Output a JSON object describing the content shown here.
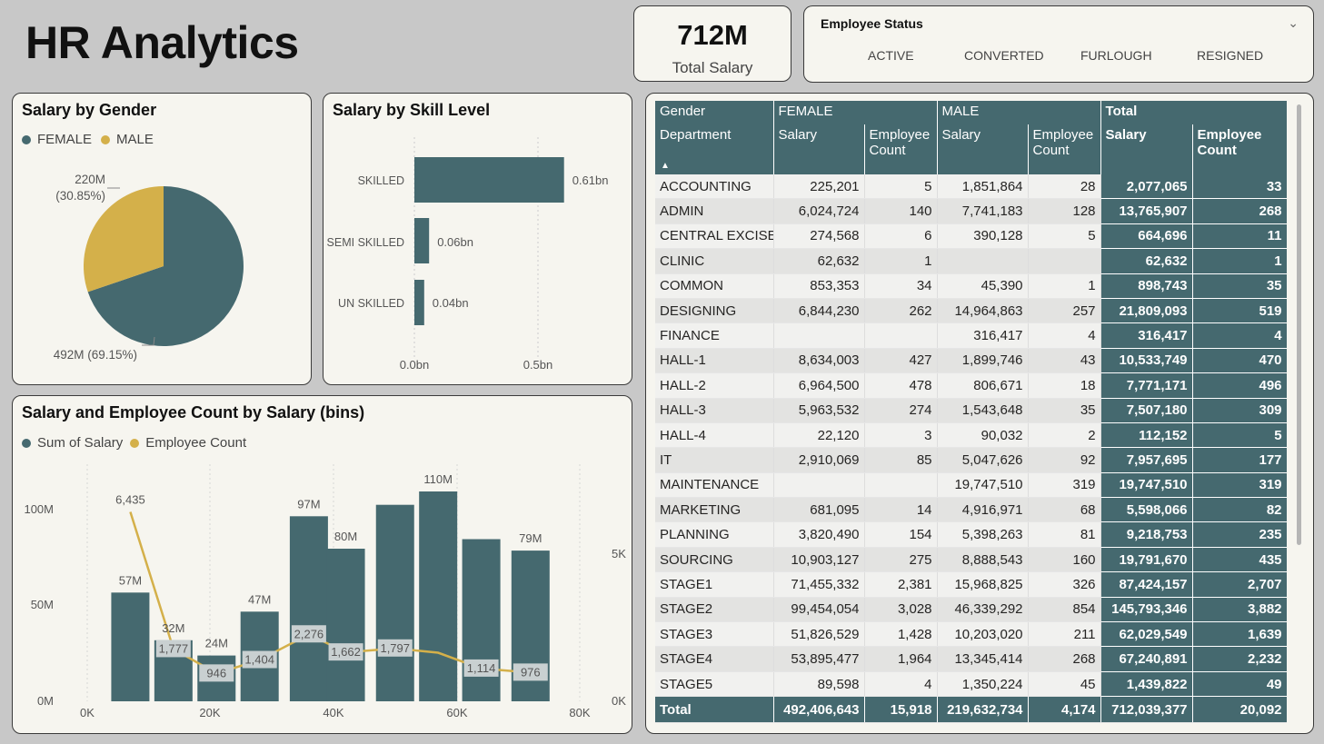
{
  "page_title": "HR Analytics",
  "kpi": {
    "value": "712M",
    "label": "Total Salary"
  },
  "slicer": {
    "title": "Employee Status",
    "options": [
      "ACTIVE",
      "CONVERTED",
      "FURLOUGH",
      "RESIGNED"
    ]
  },
  "colors": {
    "teal": "#45696f",
    "gold": "#d4b04a",
    "panel": "#f6f5ef",
    "background": "#c8c8c8"
  },
  "salary_by_gender": {
    "title": "Salary by Gender",
    "legend": [
      "FEMALE",
      "MALE"
    ],
    "female_label": "492M (69.15%)",
    "male_label_value": "220M",
    "male_label_pct": "(30.85%)"
  },
  "salary_by_skill": {
    "title": "Salary by Skill Level",
    "labels": {
      "skilled": "SKILLED",
      "semi": "SEMI SKILLED",
      "un": "UN SKILLED"
    },
    "values": {
      "skilled": "0.61bn",
      "semi": "0.06bn",
      "un": "0.04bn"
    },
    "ticks": [
      "0.0bn",
      "0.5bn"
    ]
  },
  "bins_chart": {
    "title": "Salary and Employee Count by Salary (bins)",
    "legend": [
      "Sum of Salary",
      "Employee Count"
    ],
    "y_left_ticks": [
      "100M",
      "50M",
      "0M"
    ],
    "y_right_ticks": [
      "5K",
      "0K"
    ],
    "x_ticks": [
      "0K",
      "20K",
      "40K",
      "60K",
      "80K"
    ]
  },
  "chart_data": [
    {
      "type": "pie",
      "title": "Salary by Gender",
      "categories": [
        "FEMALE",
        "MALE"
      ],
      "values": [
        492,
        220
      ],
      "percent": [
        69.15,
        30.85
      ],
      "unit": "M"
    },
    {
      "type": "bar",
      "title": "Salary by Skill Level",
      "orientation": "horizontal",
      "categories": [
        "SKILLED",
        "SEMI SKILLED",
        "UN SKILLED"
      ],
      "values": [
        0.61,
        0.06,
        0.04
      ],
      "unit": "bn",
      "xlim": [
        0,
        0.61
      ]
    },
    {
      "type": "bar",
      "title": "Salary and Employee Count by Salary (bins)",
      "x": [
        7000,
        14000,
        21000,
        28000,
        36000,
        42000,
        50000,
        57000,
        64000,
        72000
      ],
      "series": [
        {
          "name": "Sum of Salary",
          "type": "bar",
          "values": [
            57,
            32,
            24,
            47,
            97,
            80,
            103,
            110,
            85,
            79
          ],
          "labels": [
            "57M",
            "32M",
            "24M",
            "47M",
            "97M",
            "80M",
            "",
            "110M",
            "",
            "79M"
          ]
        },
        {
          "name": "Employee Count",
          "type": "line",
          "values": [
            6435,
            1777,
            946,
            1404,
            2276,
            1662,
            1797,
            1650,
            1114,
            976
          ],
          "labels": [
            "6,435",
            "1,777",
            "946",
            "1,404",
            "2,276",
            "1,662",
            "1,797",
            "",
            "1,114",
            "976"
          ]
        }
      ],
      "xlim": [
        0,
        80000
      ],
      "ylim_left": [
        0,
        100
      ],
      "ylim_right": [
        0,
        5000
      ]
    }
  ],
  "table": {
    "header_row1": [
      "Gender",
      "FEMALE",
      "MALE",
      "Total"
    ],
    "header_row2": [
      "Department",
      "Salary",
      "Employee Count",
      "Salary",
      "Employee Count",
      "Salary",
      "Employee Count"
    ],
    "rows": [
      [
        "ACCOUNTING",
        "225,201",
        "5",
        "1,851,864",
        "28",
        "2,077,065",
        "33"
      ],
      [
        "ADMIN",
        "6,024,724",
        "140",
        "7,741,183",
        "128",
        "13,765,907",
        "268"
      ],
      [
        "CENTRAL EXCISE",
        "274,568",
        "6",
        "390,128",
        "5",
        "664,696",
        "11"
      ],
      [
        "CLINIC",
        "62,632",
        "1",
        "",
        "",
        "62,632",
        "1"
      ],
      [
        "COMMON",
        "853,353",
        "34",
        "45,390",
        "1",
        "898,743",
        "35"
      ],
      [
        "DESIGNING",
        "6,844,230",
        "262",
        "14,964,863",
        "257",
        "21,809,093",
        "519"
      ],
      [
        "FINANCE",
        "",
        "",
        "316,417",
        "4",
        "316,417",
        "4"
      ],
      [
        "HALL-1",
        "8,634,003",
        "427",
        "1,899,746",
        "43",
        "10,533,749",
        "470"
      ],
      [
        "HALL-2",
        "6,964,500",
        "478",
        "806,671",
        "18",
        "7,771,171",
        "496"
      ],
      [
        "HALL-3",
        "5,963,532",
        "274",
        "1,543,648",
        "35",
        "7,507,180",
        "309"
      ],
      [
        "HALL-4",
        "22,120",
        "3",
        "90,032",
        "2",
        "112,152",
        "5"
      ],
      [
        "IT",
        "2,910,069",
        "85",
        "5,047,626",
        "92",
        "7,957,695",
        "177"
      ],
      [
        "MAINTENANCE",
        "",
        "",
        "19,747,510",
        "319",
        "19,747,510",
        "319"
      ],
      [
        "MARKETING",
        "681,095",
        "14",
        "4,916,971",
        "68",
        "5,598,066",
        "82"
      ],
      [
        "PLANNING",
        "3,820,490",
        "154",
        "5,398,263",
        "81",
        "9,218,753",
        "235"
      ],
      [
        "SOURCING",
        "10,903,127",
        "275",
        "8,888,543",
        "160",
        "19,791,670",
        "435"
      ],
      [
        "STAGE1",
        "71,455,332",
        "2,381",
        "15,968,825",
        "326",
        "87,424,157",
        "2,707"
      ],
      [
        "STAGE2",
        "99,454,054",
        "3,028",
        "46,339,292",
        "854",
        "145,793,346",
        "3,882"
      ],
      [
        "STAGE3",
        "51,826,529",
        "1,428",
        "10,203,020",
        "211",
        "62,029,549",
        "1,639"
      ],
      [
        "STAGE4",
        "53,895,477",
        "1,964",
        "13,345,414",
        "268",
        "67,240,891",
        "2,232"
      ],
      [
        "STAGE5",
        "89,598",
        "4",
        "1,350,224",
        "45",
        "1,439,822",
        "49"
      ]
    ],
    "total_row": [
      "Total",
      "492,406,643",
      "15,918",
      "219,632,734",
      "4,174",
      "712,039,377",
      "20,092"
    ]
  }
}
